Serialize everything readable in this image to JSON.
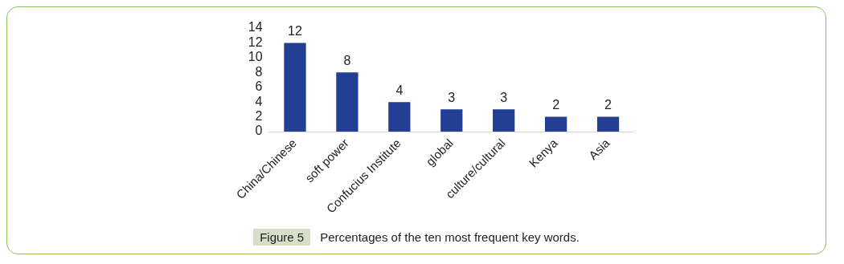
{
  "chart_data": {
    "type": "bar",
    "categories": [
      "China/Chinese",
      "soft power",
      "Confucius Institute",
      "global",
      "culture/cultural",
      "Kenya",
      "Asia"
    ],
    "values": [
      12,
      8,
      4,
      3,
      3,
      2,
      2
    ],
    "color": "#233f94",
    "ylim": [
      0,
      14
    ],
    "yticks": [
      0,
      2,
      4,
      6,
      8,
      10,
      12,
      14
    ],
    "grid": false,
    "data_labels": true,
    "annotations": [
      "Figure 5",
      "Percentages of the ten most frequent key words."
    ]
  }
}
